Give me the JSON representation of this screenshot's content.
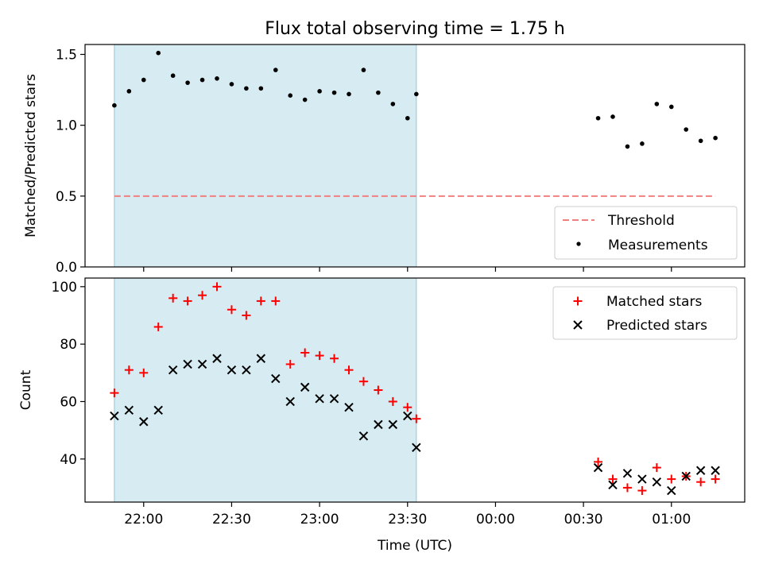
{
  "chart_data": [
    {
      "type": "scatter",
      "title": "Flux total observing time = 1.75 h",
      "ylabel": "Matched/Predicted stars",
      "xlabel": "",
      "ylim": [
        0.0,
        1.57
      ],
      "yticks": [
        "0.0",
        "0.5",
        "1.0",
        "1.5"
      ],
      "shaded_span": {
        "from": "21:50",
        "to": "23:33",
        "color": "#add8e6"
      },
      "legend_position": "lower-right",
      "series": [
        {
          "name": "Threshold",
          "kind": "dashed-line",
          "color": "#f08080",
          "x": [
            "21:50",
            "01:15"
          ],
          "y": [
            0.5,
            0.5
          ]
        },
        {
          "name": "Measurements",
          "kind": "dot",
          "color": "#000000",
          "x": [
            "21:50",
            "21:55",
            "22:00",
            "22:05",
            "22:10",
            "22:15",
            "22:20",
            "22:25",
            "22:30",
            "22:35",
            "22:40",
            "22:45",
            "22:50",
            "22:55",
            "23:00",
            "23:05",
            "23:10",
            "23:15",
            "23:20",
            "23:25",
            "23:30",
            "23:33",
            "00:35",
            "00:40",
            "00:45",
            "00:50",
            "00:55",
            "01:00",
            "01:05",
            "01:10",
            "01:15"
          ],
          "y": [
            1.14,
            1.24,
            1.32,
            1.51,
            1.35,
            1.3,
            1.32,
            1.33,
            1.29,
            1.26,
            1.26,
            1.39,
            1.21,
            1.18,
            1.24,
            1.23,
            1.22,
            1.39,
            1.23,
            1.15,
            1.05,
            1.22,
            1.05,
            1.06,
            0.85,
            0.87,
            1.15,
            1.13,
            0.97,
            0.89,
            0.91
          ]
        }
      ]
    },
    {
      "type": "scatter",
      "title": "",
      "ylabel": "Count",
      "xlabel": "Time (UTC)",
      "ylim": [
        25,
        103
      ],
      "yticks": [
        "40",
        "60",
        "80",
        "100"
      ],
      "xticks": [
        "22:00",
        "22:30",
        "23:00",
        "23:30",
        "00:00",
        "00:30",
        "01:00"
      ],
      "shaded_span": {
        "from": "21:50",
        "to": "23:33",
        "color": "#add8e6"
      },
      "legend_position": "upper-right",
      "series": [
        {
          "name": "Matched stars",
          "kind": "plus",
          "color": "#ff0000",
          "x": [
            "21:50",
            "21:55",
            "22:00",
            "22:05",
            "22:10",
            "22:15",
            "22:20",
            "22:25",
            "22:30",
            "22:35",
            "22:40",
            "22:45",
            "22:50",
            "22:55",
            "23:00",
            "23:05",
            "23:10",
            "23:15",
            "23:20",
            "23:25",
            "23:30",
            "23:33",
            "00:35",
            "00:40",
            "00:45",
            "00:50",
            "00:55",
            "01:00",
            "01:05",
            "01:10",
            "01:15"
          ],
          "y": [
            63,
            71,
            70,
            86,
            96,
            95,
            97,
            100,
            92,
            90,
            95,
            95,
            73,
            77,
            76,
            75,
            71,
            67,
            64,
            60,
            58,
            54,
            39,
            33,
            30,
            29,
            37,
            33,
            34,
            32,
            33
          ]
        },
        {
          "name": "Predicted stars",
          "kind": "x",
          "color": "#000000",
          "x": [
            "21:50",
            "21:55",
            "22:00",
            "22:05",
            "22:10",
            "22:15",
            "22:20",
            "22:25",
            "22:30",
            "22:35",
            "22:40",
            "22:45",
            "22:50",
            "22:55",
            "23:00",
            "23:05",
            "23:10",
            "23:15",
            "23:20",
            "23:25",
            "23:30",
            "23:33",
            "00:35",
            "00:40",
            "00:45",
            "00:50",
            "00:55",
            "01:00",
            "01:05",
            "01:10",
            "01:15"
          ],
          "y": [
            55,
            57,
            53,
            57,
            71,
            73,
            73,
            75,
            71,
            71,
            75,
            68,
            60,
            65,
            61,
            61,
            58,
            48,
            52,
            52,
            55,
            44,
            37,
            31,
            35,
            33,
            32,
            29,
            34,
            36,
            36
          ]
        }
      ]
    }
  ]
}
